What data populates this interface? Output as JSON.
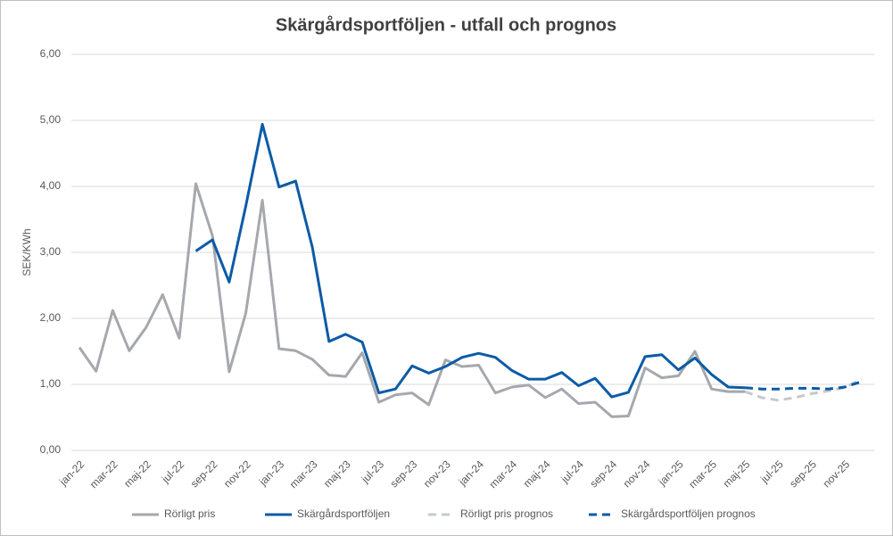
{
  "chart_data": {
    "type": "line",
    "title": "Skärgårdsportföljen - utfall och prognos",
    "y_label": "SEK/KWh",
    "categories": [
      "jan-22",
      null,
      "mar-22",
      null,
      "maj-22",
      null,
      "jul-22",
      null,
      "sep-22",
      null,
      "nov-22",
      null,
      "jan-23",
      null,
      "mar-23",
      null,
      "maj-23",
      null,
      "jul-23",
      null,
      "sep-23",
      null,
      "nov-23",
      null,
      "jan-24",
      null,
      "mar-24",
      null,
      "maj-24",
      null,
      "jul-24",
      null,
      "sep-24",
      null,
      "nov-24",
      null,
      "jan-25",
      null,
      "mar-25",
      null,
      "maj-25",
      null,
      "jul-25",
      null,
      "sep-25",
      null,
      "nov-25",
      null
    ],
    "ylim": [
      0,
      6
    ],
    "yticks": [
      {
        "value": 0,
        "label": "0,00"
      },
      {
        "value": 1,
        "label": "1,00"
      },
      {
        "value": 2,
        "label": "2,00"
      },
      {
        "value": 3,
        "label": "3,00"
      },
      {
        "value": 4,
        "label": "4,00"
      },
      {
        "value": 5,
        "label": "5,00"
      },
      {
        "value": 6,
        "label": "6,00"
      }
    ],
    "grid": true,
    "legend": "bottom",
    "series": [
      {
        "name": "Rörligt pris",
        "color": "#a5a8ad",
        "dashed": false,
        "values": [
          1.56,
          1.2,
          2.12,
          1.51,
          1.86,
          2.36,
          1.7,
          4.04,
          3.25,
          1.19,
          2.08,
          3.79,
          1.54,
          1.51,
          1.38,
          1.14,
          1.12,
          1.48,
          0.73,
          0.84,
          0.87,
          0.69,
          1.37,
          1.27,
          1.29,
          0.87,
          0.96,
          0.99,
          0.8,
          0.93,
          0.71,
          0.73,
          0.51,
          0.52,
          1.25,
          1.1,
          1.13,
          1.5,
          0.93,
          0.89,
          0.89,
          null,
          null,
          null,
          null,
          null,
          null,
          null
        ]
      },
      {
        "name": "Skärgårdsportföljen",
        "color": "#0b5ba6",
        "dashed": false,
        "values": [
          null,
          null,
          null,
          null,
          null,
          null,
          null,
          3.02,
          3.19,
          2.55,
          3.7,
          4.94,
          3.99,
          4.08,
          3.08,
          1.65,
          1.76,
          1.64,
          0.87,
          0.93,
          1.28,
          1.17,
          1.27,
          1.41,
          1.47,
          1.41,
          1.21,
          1.08,
          1.08,
          1.18,
          0.98,
          1.09,
          0.81,
          0.88,
          1.42,
          1.45,
          1.22,
          1.4,
          1.15,
          0.96,
          0.95,
          null,
          null,
          null,
          null,
          null,
          null,
          null
        ]
      },
      {
        "name": "Rörligt pris prognos",
        "color": "#c6c8cc",
        "dashed": true,
        "values": [
          null,
          null,
          null,
          null,
          null,
          null,
          null,
          null,
          null,
          null,
          null,
          null,
          null,
          null,
          null,
          null,
          null,
          null,
          null,
          null,
          null,
          null,
          null,
          null,
          null,
          null,
          null,
          null,
          null,
          null,
          null,
          null,
          null,
          null,
          null,
          null,
          null,
          null,
          null,
          null,
          0.89,
          0.8,
          0.76,
          0.8,
          0.86,
          0.9,
          0.95,
          1.08
        ]
      },
      {
        "name": "Skärgårdsportföljen prognos",
        "color": "#0b5ba6",
        "dashed": true,
        "values": [
          null,
          null,
          null,
          null,
          null,
          null,
          null,
          null,
          null,
          null,
          null,
          null,
          null,
          null,
          null,
          null,
          null,
          null,
          null,
          null,
          null,
          null,
          null,
          null,
          null,
          null,
          null,
          null,
          null,
          null,
          null,
          null,
          null,
          null,
          null,
          null,
          null,
          null,
          null,
          null,
          0.95,
          0.93,
          0.93,
          0.94,
          0.94,
          0.93,
          0.96,
          1.04
        ]
      }
    ]
  }
}
